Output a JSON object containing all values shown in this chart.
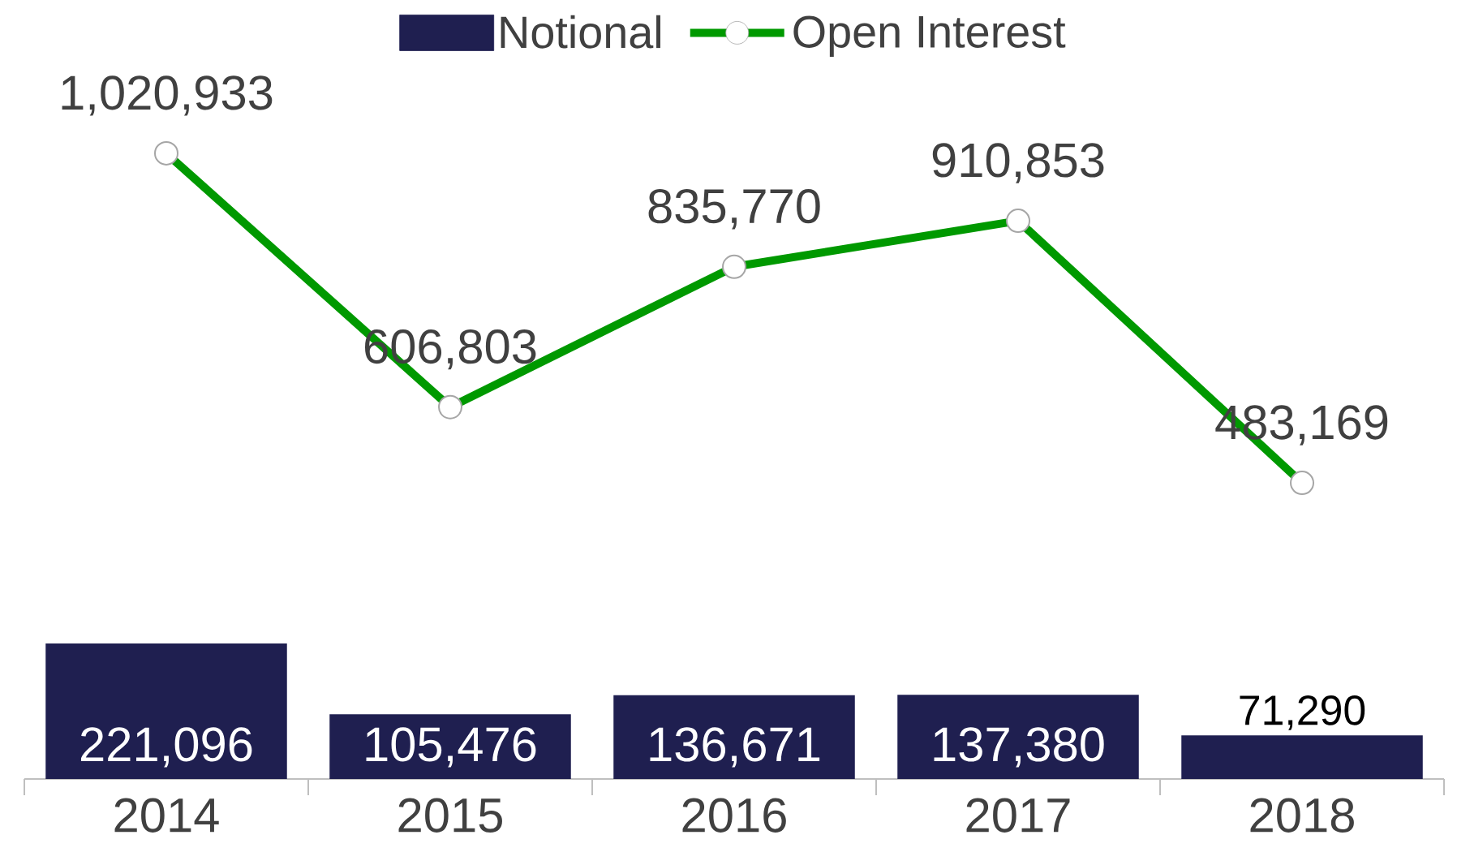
{
  "chart_data": {
    "type": "bar",
    "categories": [
      "2014",
      "2015",
      "2016",
      "2017",
      "2018"
    ],
    "tick_labels": "x",
    "legend": "top",
    "marker": "circle",
    "series": [
      {
        "name": "Notional",
        "color": "#1f1f50",
        "values": [
          221096,
          105476,
          136671,
          137380,
          71290
        ],
        "value_labels": [
          "221,096",
          "105,476",
          "136,671",
          "137,380",
          "71,290"
        ]
      },
      {
        "name": "Open Interest",
        "type": "line",
        "color": "#009900",
        "values": [
          1020933,
          606803,
          835770,
          910853,
          483169
        ],
        "value_labels": [
          "1,020,933",
          "606,803",
          "835,770",
          "910,853",
          "483,169"
        ]
      }
    ]
  }
}
